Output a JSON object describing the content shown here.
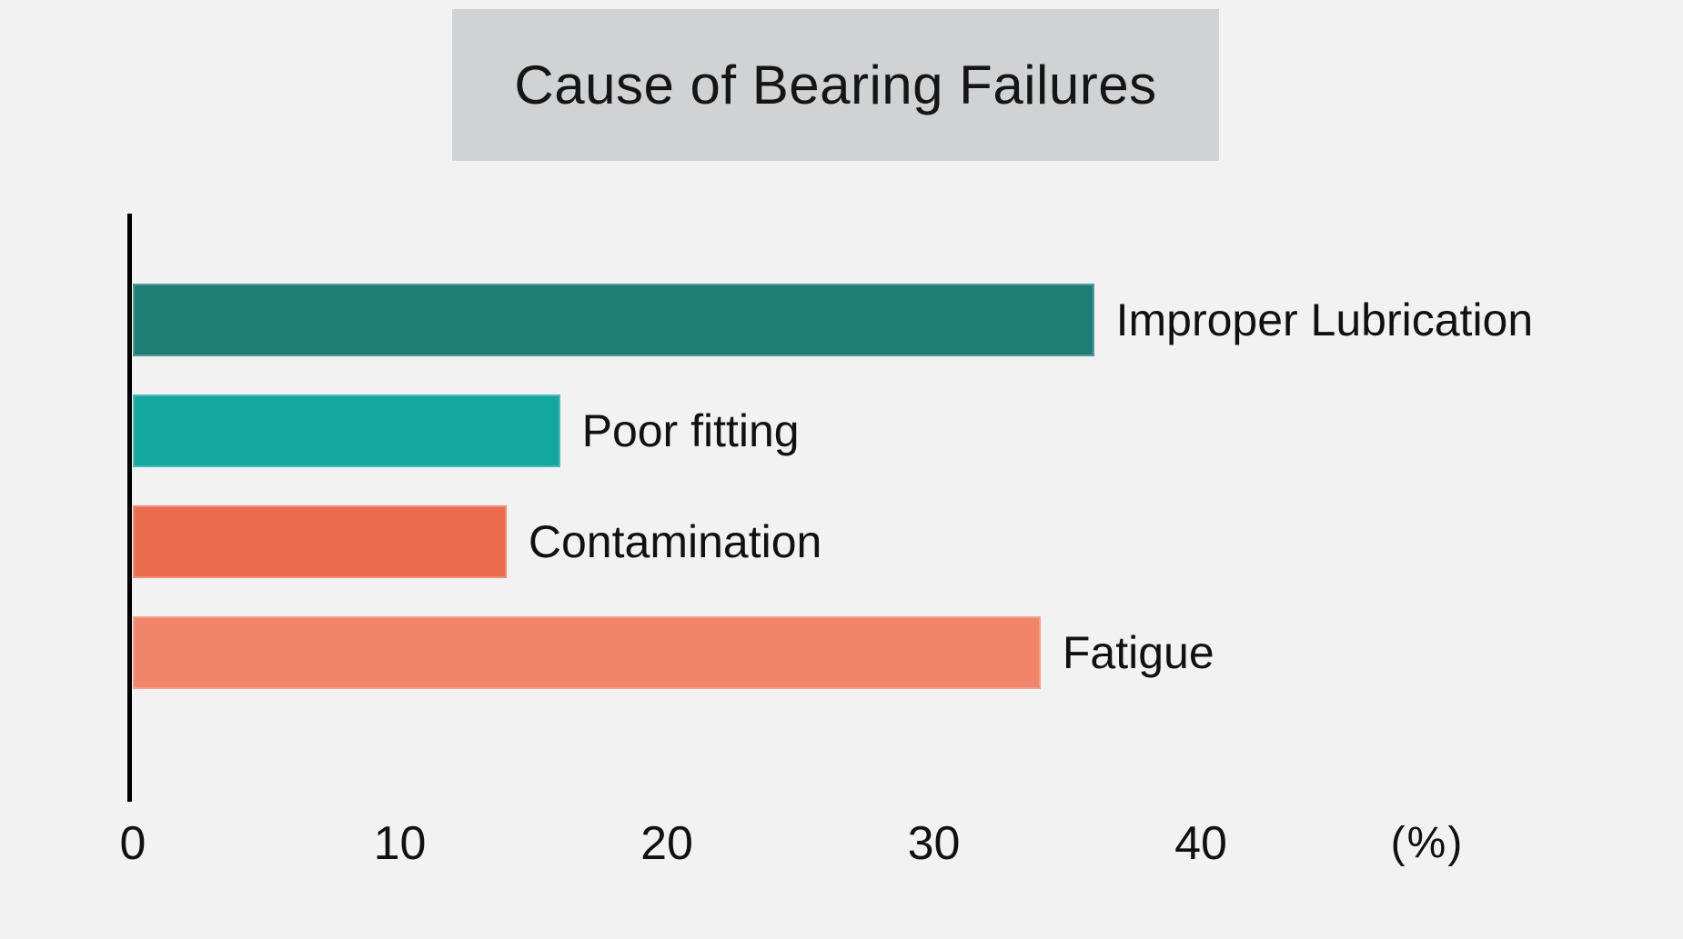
{
  "title": "Cause of Bearing Failures",
  "colors": {
    "background": "#F2F2F2",
    "title_box": "#D1D2D4",
    "axis_line": "#000000",
    "text": "#111111"
  },
  "axis": {
    "unit_label": "(%)",
    "tick_labels": [
      "0",
      "10",
      "20",
      "30",
      "40"
    ]
  },
  "chart_data": {
    "type": "bar",
    "orientation": "horizontal",
    "title": "Cause of Bearing Failures",
    "categories": [
      "Improper Lubrication",
      "Poor fitting",
      "Contamination",
      "Fatigue"
    ],
    "values": [
      36,
      16,
      14,
      34
    ],
    "bar_colors": [
      "#1F7D78",
      "#12A8A0",
      "#E96C4E",
      "#F28569"
    ],
    "xlabel": "(%)",
    "ylabel": "",
    "x_ticks": [
      0,
      10,
      20,
      30,
      40
    ],
    "xlim": [
      0,
      48
    ],
    "grid": false,
    "legend": "none",
    "annotations": "category name printed to the right of each bar end"
  }
}
